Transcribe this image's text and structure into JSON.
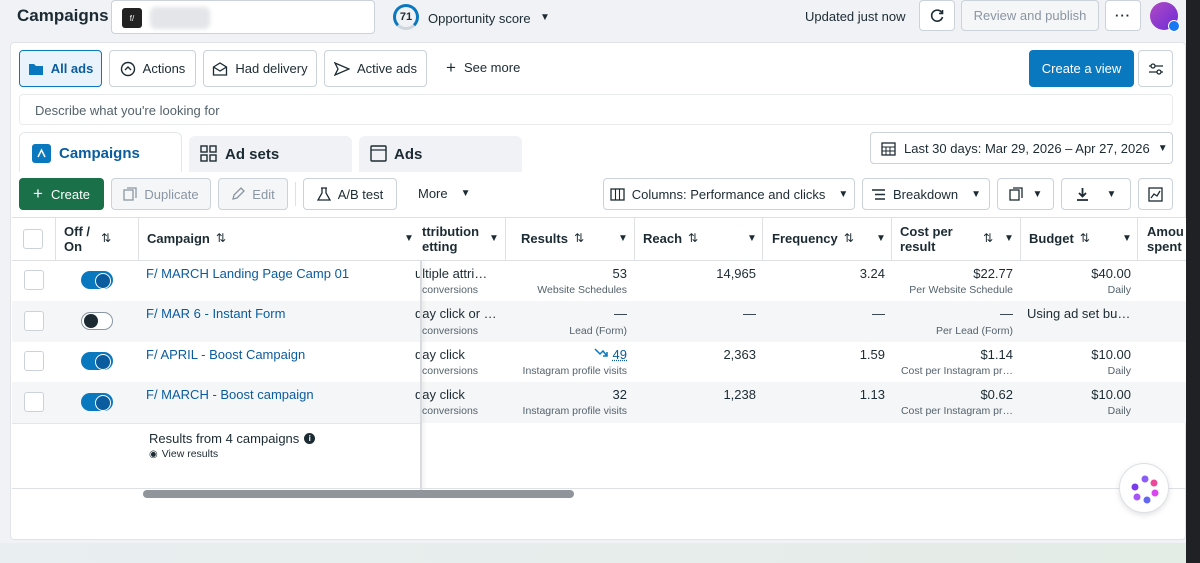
{
  "topbar": {
    "title": "Campaigns",
    "account_badge": "f/",
    "score_value": "71",
    "score_label": "Opportunity score",
    "updated": "Updated just now",
    "review_publish": "Review and publish"
  },
  "filters": {
    "all_ads": "All ads",
    "actions": "Actions",
    "had_delivery": "Had delivery",
    "active_ads": "Active ads",
    "see_more": "See more",
    "create_view": "Create a view",
    "search_placeholder": "Describe what you're looking for"
  },
  "tabs": {
    "campaigns": "Campaigns",
    "ad_sets": "Ad sets",
    "ads": "Ads"
  },
  "date_range": "Last 30 days: Mar 29, 2026 – Apr 27, 2026",
  "toolbar": {
    "create": "Create",
    "duplicate": "Duplicate",
    "edit": "Edit",
    "ab_test": "A/B test",
    "more": "More",
    "columns": "Columns: Performance and clicks",
    "breakdown": "Breakdown"
  },
  "columns": {
    "off_on_1": "Off /",
    "off_on_2": "On",
    "campaign": "Campaign",
    "attribution_1": "ttribution",
    "attribution_2": "etting",
    "results": "Results",
    "reach": "Reach",
    "frequency": "Frequency",
    "cost_1": "Cost per",
    "cost_2": "result",
    "budget": "Budget",
    "amount_1": "Amou",
    "amount_2": "spent"
  },
  "rows": [
    {
      "name": "F/ MARCH Landing Page Camp 01",
      "on": true,
      "attr": "ultiple attri…",
      "attr_sub": "conversions",
      "results": "53",
      "results_sub": "Website Schedules",
      "reach": "14,965",
      "frequency": "3.24",
      "cost": "$22.77",
      "cost_sub": "Per Website Schedule",
      "budget": "$40.00",
      "budget_sub": "Daily"
    },
    {
      "name": "F/ MAR 6 - Instant Form",
      "on": false,
      "attr": "day click or …",
      "attr_sub": "conversions",
      "results": "—",
      "results_sub": "Lead (Form)",
      "reach": "—",
      "frequency": "—",
      "cost": "—",
      "cost_sub": "Per Lead (Form)",
      "budget": "Using ad set bu…",
      "budget_sub": ""
    },
    {
      "name": "F/ APRIL - Boost Campaign",
      "on": true,
      "attr": "day click",
      "attr_sub": "conversions",
      "results": "49",
      "results_sub": "Instagram profile visits",
      "reach": "2,363",
      "frequency": "1.59",
      "cost": "$1.14",
      "cost_sub": "Cost per Instagram pr…",
      "budget": "$10.00",
      "budget_sub": "Daily"
    },
    {
      "name": "F/ MARCH - Boost campaign",
      "on": true,
      "attr": "day click",
      "attr_sub": "conversions",
      "results": "32",
      "results_sub": "Instagram profile visits",
      "reach": "1,238",
      "frequency": "1.13",
      "cost": "$0.62",
      "cost_sub": "Cost per Instagram pr…",
      "budget": "$10.00",
      "budget_sub": "Daily"
    }
  ],
  "summary": {
    "results_from": "Results from 4 campaigns",
    "view_results": "View results"
  },
  "colors": {
    "accent": "#0a78be",
    "create": "#1a7048",
    "link": "#0a5c9e"
  }
}
